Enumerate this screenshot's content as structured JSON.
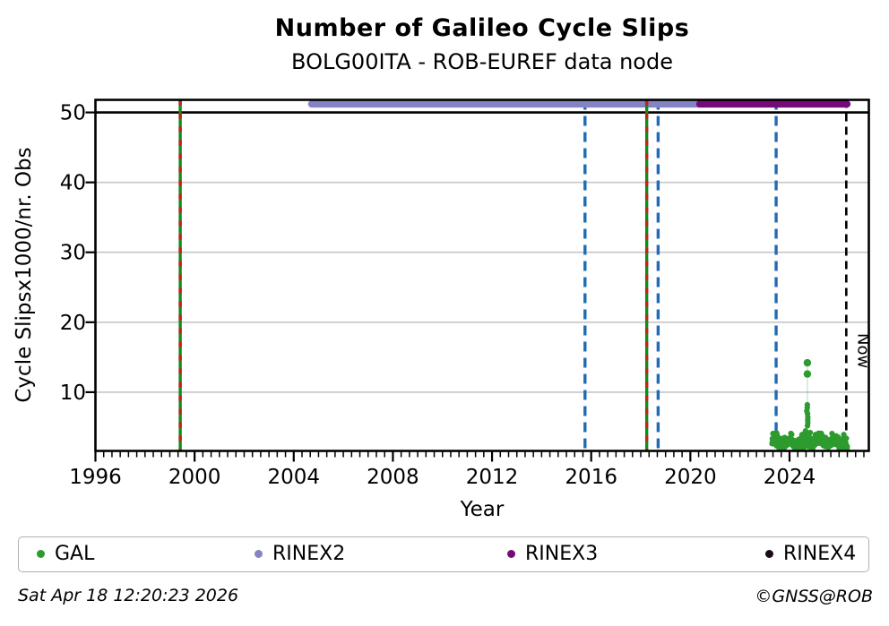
{
  "chart_data": {
    "type": "scatter",
    "title": "Number of Galileo Cycle Slips",
    "subtitle": "BOLG00ITA - ROB-EUREF data node",
    "xlabel": "Year",
    "ylabel": "Cycle Slipsx1000/nr. Obs",
    "xlim": [
      1996.0,
      2027.2
    ],
    "ylim": [
      1.6,
      51.8
    ],
    "xticks": [
      1996,
      2000,
      2004,
      2008,
      2012,
      2016,
      2020,
      2024
    ],
    "yticks": [
      10,
      20,
      30,
      40,
      50
    ],
    "x_minor_step": 0.3333333,
    "grid_y": [
      10,
      20,
      30,
      40
    ],
    "grid_on": true,
    "cap_line_value": 50,
    "now_line": {
      "x": 2026.29,
      "label": "Now"
    },
    "event_lines": [
      {
        "x": 1999.42,
        "style": "green-red-dashed"
      },
      {
        "x": 2015.75,
        "style": "blue-dashed"
      },
      {
        "x": 2018.24,
        "style": "green-red-dashed"
      },
      {
        "x": 2018.7,
        "style": "blue-dashed"
      },
      {
        "x": 2023.46,
        "style": "blue-dashed"
      }
    ],
    "rinex_bars": [
      {
        "name": "RINEX2",
        "start": 2004.72,
        "end": 2020.38,
        "value": 51.2,
        "color": "#8484c4"
      },
      {
        "name": "RINEX3",
        "start": 2020.38,
        "end": 2026.32,
        "value": 51.2,
        "color": "#760a76"
      }
    ],
    "gal_scatter": {
      "name": "GAL",
      "color": "#2e9b2e",
      "band": {
        "x_start": 2023.3,
        "x_end": 2026.33,
        "v_min": 1.9,
        "v_max": 4.85,
        "v_center": 2.85,
        "n_points": 540
      },
      "spike": {
        "x": 2024.72,
        "column_values": [
          5.2,
          5.6,
          6.0,
          6.4,
          6.9,
          7.3,
          7.8,
          8.2
        ],
        "outliers": [
          12.6,
          14.2
        ]
      }
    },
    "legend": [
      {
        "label": "GAL",
        "color": "#2e9b2e"
      },
      {
        "label": "RINEX2",
        "color": "#8484c4"
      },
      {
        "label": "RINEX3",
        "color": "#760a76"
      },
      {
        "label": "RINEX4",
        "color": "#1c0a1c"
      }
    ],
    "legend_position": "bottom"
  },
  "colors": {
    "scatter_green": "#2e9b2e",
    "event_green": "#168a16",
    "event_red": "#c81e1e",
    "change_blue": "#1f6cb4",
    "grid": "#c6c6c6",
    "axis": "#000000"
  },
  "footer": {
    "timestamp": "Sat Apr 18 12:20:23 2026",
    "credit": "©GNSS@ROB"
  }
}
